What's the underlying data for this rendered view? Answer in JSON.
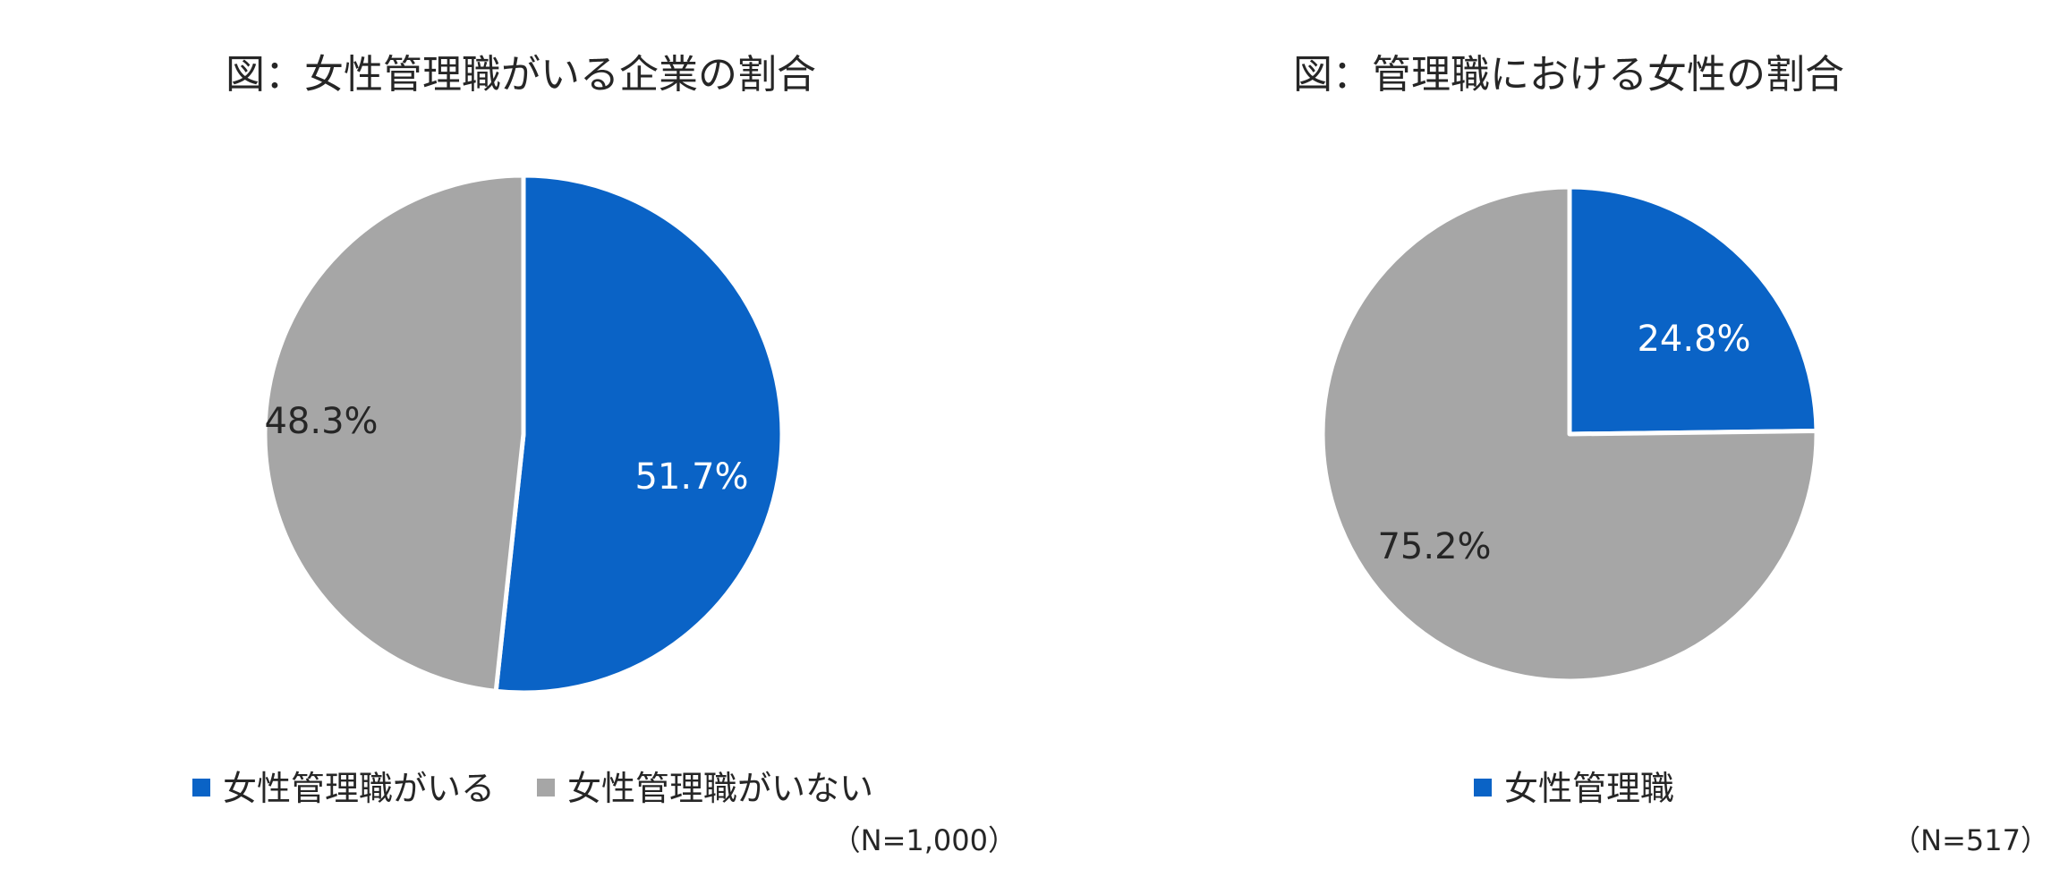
{
  "chart_data": [
    {
      "type": "pie",
      "title": "図：女性管理職がいる企業の割合",
      "categories": [
        "女性管理職がいる",
        "女性管理職がいない"
      ],
      "values": [
        51.7,
        48.3
      ],
      "data_labels": [
        "51.7%",
        "48.3%"
      ],
      "colors": [
        "#0a63c6",
        "#a6a6a6"
      ],
      "label_colors": [
        "#ffffff",
        "#262626"
      ],
      "legend": [
        "女性管理職がいる",
        "女性管理職がいない"
      ],
      "legend_position": "bottom",
      "note": "（N=1,000）"
    },
    {
      "type": "pie",
      "title": "図：管理職における女性の割合",
      "categories": [
        "女性管理職",
        ""
      ],
      "values": [
        24.8,
        75.2
      ],
      "data_labels": [
        "24.8%",
        "75.2%"
      ],
      "colors": [
        "#0a63c6",
        "#a6a6a6"
      ],
      "label_colors": [
        "#ffffff",
        "#262626"
      ],
      "legend": [
        "女性管理職"
      ],
      "legend_position": "bottom",
      "note": "（N=517）"
    }
  ]
}
